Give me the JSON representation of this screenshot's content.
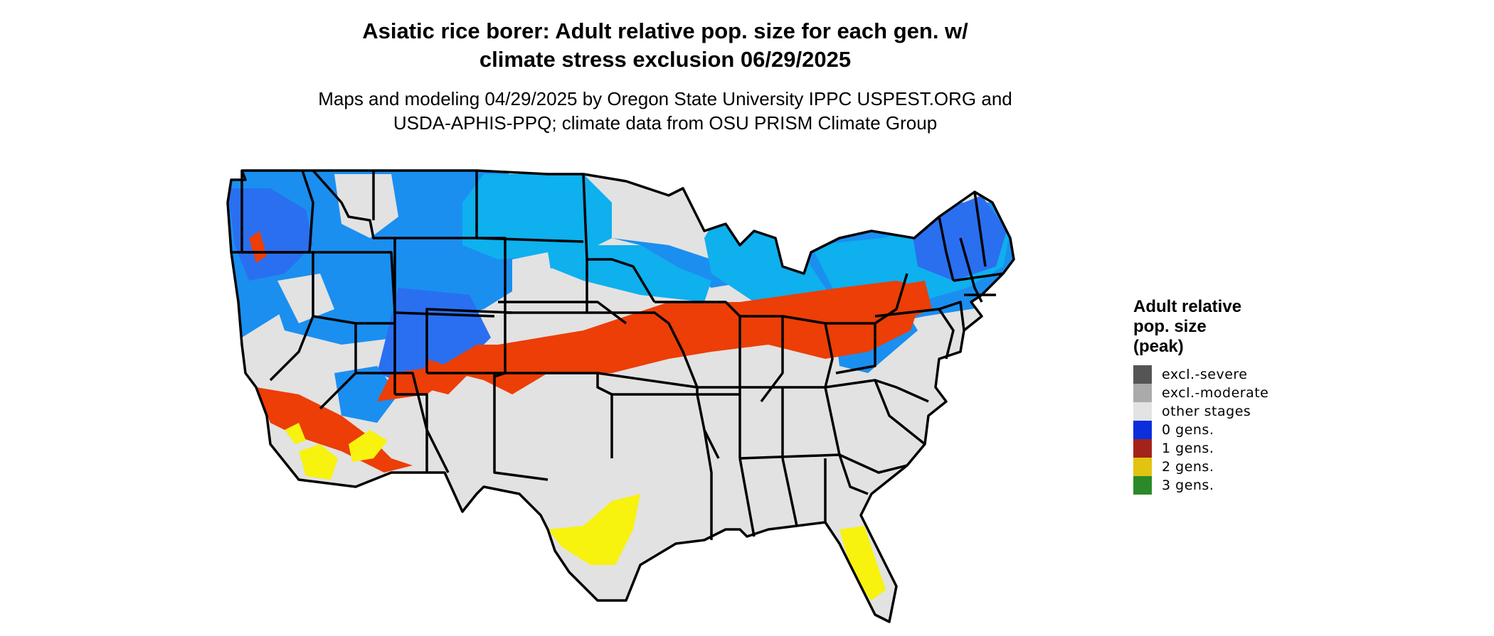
{
  "header": {
    "title_line1": "Asiatic rice borer: Adult relative pop. size for each gen. w/",
    "title_line2": "climate stress exclusion 06/29/2025",
    "subtitle_line1": "Maps and modeling 04/29/2025 by Oregon State University IPPC USPEST.ORG and",
    "subtitle_line2": "USDA-APHIS-PPQ; climate data from OSU PRISM Climate Group"
  },
  "legend": {
    "title_line1": "Adult relative",
    "title_line2": "pop. size",
    "title_line3": "(peak)",
    "items": [
      {
        "label": "excl.-severe",
        "color": "#555555"
      },
      {
        "label": "excl.-moderate",
        "color": "#aaaaaa"
      },
      {
        "label": "other stages",
        "color": "#e3e3e3"
      },
      {
        "label": "0 gens.",
        "color": "#0a2fdc"
      },
      {
        "label": "1 gens.",
        "color": "#a3231a"
      },
      {
        "label": "2 gens.",
        "color": "#e1c411"
      },
      {
        "label": "3 gens.",
        "color": "#2a8a2a"
      }
    ]
  },
  "map_colors": {
    "base": "#e2e2e2",
    "light_blue": "#0eb0ee",
    "mid_blue": "#1a8ff0",
    "deep_blue": "#2a6ff0",
    "orange": "#ec3e06",
    "yellow": "#f7f20e",
    "border": "#000000"
  }
}
